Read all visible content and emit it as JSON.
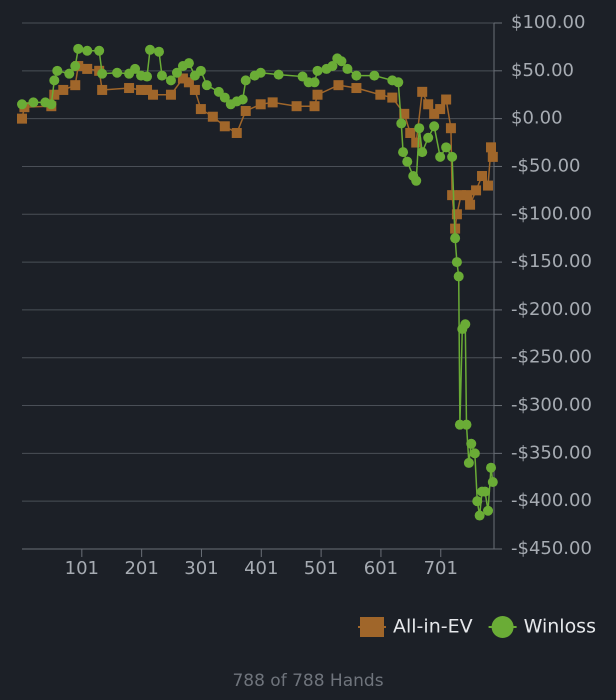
{
  "chart_data": {
    "type": "line",
    "xlim": [
      1,
      790
    ],
    "xticks": [
      101,
      201,
      301,
      401,
      501,
      601,
      701
    ],
    "ylim": [
      -450,
      100
    ],
    "yticks": [
      {
        "value": 100,
        "label": "$100.00"
      },
      {
        "value": 50,
        "label": "$50.00"
      },
      {
        "value": 0,
        "label": "$0.00"
      },
      {
        "value": -50,
        "label": "-$50.00"
      },
      {
        "value": -100,
        "label": "-$100.00"
      },
      {
        "value": -150,
        "label": "-$150.00"
      },
      {
        "value": -200,
        "label": "-$200.00"
      },
      {
        "value": -250,
        "label": "-$250.00"
      },
      {
        "value": -300,
        "label": "-$300.00"
      },
      {
        "value": -350,
        "label": "-$350.00"
      },
      {
        "value": -400,
        "label": "-$400.00"
      },
      {
        "value": -450,
        "label": "-$450.00"
      }
    ],
    "grid": true,
    "legend": "bottom-right",
    "footer": "788 of 788 Hands",
    "series": [
      {
        "name": "All-in-EV",
        "color": "#a0662a",
        "marker": "square",
        "x": [
          1,
          5,
          50,
          55,
          70,
          90,
          95,
          110,
          130,
          135,
          180,
          200,
          210,
          220,
          250,
          270,
          280,
          290,
          300,
          320,
          340,
          360,
          375,
          400,
          420,
          460,
          490,
          495,
          530,
          560,
          600,
          620,
          640,
          650,
          660,
          670,
          680,
          690,
          700,
          710,
          718,
          720,
          725,
          728,
          735,
          745,
          750,
          760,
          770,
          780,
          785,
          788
        ],
        "values": [
          0,
          12,
          13,
          25,
          30,
          35,
          55,
          52,
          50,
          30,
          32,
          30,
          30,
          25,
          25,
          42,
          38,
          30,
          10,
          2,
          -8,
          -15,
          8,
          15,
          17,
          13,
          13,
          25,
          35,
          32,
          25,
          22,
          5,
          -15,
          -25,
          28,
          15,
          5,
          10,
          20,
          -10,
          -80,
          -115,
          -100,
          -80,
          -80,
          -90,
          -75,
          -60,
          -70,
          -30,
          -40
        ]
      },
      {
        "name": "Winloss",
        "color": "#6aac36",
        "marker": "circle",
        "x": [
          1,
          20,
          40,
          50,
          55,
          60,
          80,
          90,
          95,
          110,
          130,
          135,
          160,
          180,
          190,
          200,
          210,
          215,
          230,
          235,
          250,
          260,
          270,
          280,
          290,
          300,
          310,
          330,
          340,
          350,
          360,
          370,
          375,
          390,
          400,
          430,
          470,
          480,
          490,
          495,
          510,
          520,
          528,
          535,
          545,
          560,
          590,
          620,
          630,
          635,
          638,
          645,
          655,
          660,
          665,
          670,
          680,
          690,
          700,
          710,
          720,
          725,
          728,
          731,
          733,
          737,
          742,
          744,
          748,
          752,
          758,
          762,
          766,
          770,
          775,
          780,
          785,
          788
        ],
        "values": [
          15,
          17,
          17,
          15,
          40,
          50,
          47,
          55,
          73,
          71,
          71,
          47,
          48,
          47,
          52,
          45,
          44,
          72,
          70,
          45,
          40,
          48,
          55,
          58,
          45,
          50,
          35,
          28,
          22,
          15,
          18,
          20,
          40,
          45,
          48,
          46,
          44,
          38,
          38,
          50,
          52,
          55,
          63,
          60,
          52,
          45,
          45,
          40,
          38,
          -5,
          -35,
          -45,
          -60,
          -65,
          -10,
          -35,
          -20,
          -8,
          -40,
          -30,
          -40,
          -125,
          -150,
          -165,
          -320,
          -220,
          -215,
          -320,
          -360,
          -340,
          -350,
          -400,
          -415,
          -390,
          -390,
          -410,
          -365,
          -380
        ]
      }
    ]
  }
}
